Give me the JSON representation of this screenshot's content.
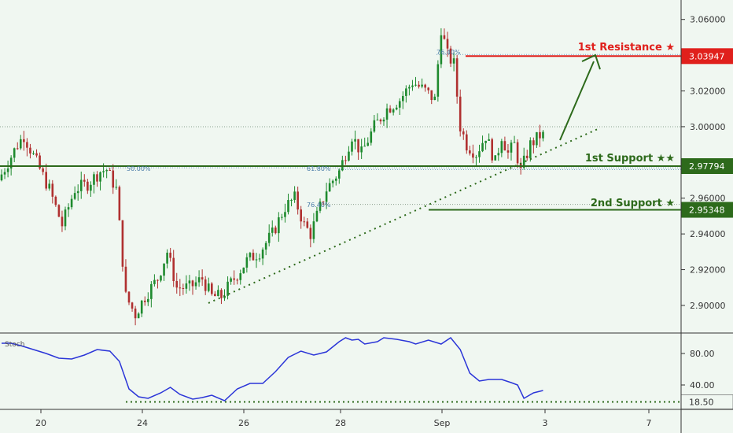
{
  "chart_data": [
    {
      "type": "candlestick",
      "title": "",
      "ylim": [
        2.885,
        3.07
      ],
      "grid": false,
      "yticks": [
        "3.06000",
        "3.04000",
        "3.02000",
        "3.00000",
        "2.98000",
        "2.96000",
        "2.94000",
        "2.92000",
        "2.90000"
      ],
      "xticks": [
        "20",
        "24",
        "26",
        "28",
        "Sep",
        "3",
        "7"
      ],
      "anchors": [
        [
          0,
          2.97
        ],
        [
          6,
          2.99
        ],
        [
          8,
          2.995
        ],
        [
          12,
          2.98
        ],
        [
          16,
          2.965
        ],
        [
          20,
          2.945
        ],
        [
          24,
          2.965
        ],
        [
          28,
          2.968
        ],
        [
          32,
          2.975
        ],
        [
          34,
          2.976
        ],
        [
          37,
          2.965
        ],
        [
          40,
          2.905
        ],
        [
          43,
          2.895
        ],
        [
          46,
          2.905
        ],
        [
          50,
          2.915
        ],
        [
          53,
          2.93
        ],
        [
          56,
          2.91
        ],
        [
          60,
          2.91
        ],
        [
          64,
          2.915
        ],
        [
          67,
          2.905
        ],
        [
          70,
          2.905
        ],
        [
          74,
          2.915
        ],
        [
          78,
          2.925
        ],
        [
          82,
          2.93
        ],
        [
          86,
          2.94
        ],
        [
          90,
          2.955
        ],
        [
          93,
          2.96
        ],
        [
          96,
          2.945
        ],
        [
          98,
          2.94
        ],
        [
          100,
          2.95
        ],
        [
          103,
          2.965
        ],
        [
          107,
          2.975
        ],
        [
          111,
          2.995
        ],
        [
          114,
          2.985
        ],
        [
          118,
          3.0
        ],
        [
          122,
          3.01
        ],
        [
          126,
          3.015
        ],
        [
          130,
          3.025
        ],
        [
          134,
          3.02
        ],
        [
          137,
          3.015
        ],
        [
          139,
          3.055
        ],
        [
          141,
          3.04
        ],
        [
          143,
          3.035
        ],
        [
          145,
          3.0
        ],
        [
          147,
          2.99
        ],
        [
          150,
          2.985
        ],
        [
          153,
          2.995
        ],
        [
          156,
          2.98
        ],
        [
          158,
          2.995
        ],
        [
          160,
          2.985
        ],
        [
          162,
          2.99
        ],
        [
          164,
          2.975
        ],
        [
          167,
          2.99
        ],
        [
          170,
          2.995
        ]
      ],
      "horizontal_levels": [
        {
          "name": "1st Resistance ★",
          "value": 3.03947,
          "label": "3.03947",
          "color": "#e0201c"
        },
        {
          "name": "1st Support ★★",
          "value": 2.97794,
          "label": "2.97794",
          "color": "#2d6a1b"
        },
        {
          "name": "2nd Support ★",
          "value": 2.95348,
          "label": "2.95348",
          "color": "#2d6a1b"
        }
      ],
      "fib_labels": [
        "76.40%",
        "50.00%",
        "61.80%",
        "76.40%"
      ]
    },
    {
      "type": "line",
      "title": "Stoch",
      "ylim": [
        10,
        105
      ],
      "yticks": [
        "80.00",
        "40.00"
      ],
      "level": {
        "value": 18.5,
        "label": "18.50"
      },
      "x": [
        0,
        3,
        6,
        10,
        14,
        18,
        22,
        26,
        30,
        34,
        37,
        40,
        43,
        46,
        50,
        53,
        56,
        60,
        63,
        66,
        70,
        74,
        78,
        82,
        86,
        90,
        94,
        98,
        102,
        106,
        108,
        110,
        112,
        114,
        118,
        120,
        124,
        128,
        130,
        134,
        138,
        141,
        144,
        147,
        150,
        153,
        157,
        160,
        162,
        164,
        167,
        170
      ],
      "values": [
        93,
        93,
        90,
        85,
        80,
        74,
        73,
        78,
        85,
        83,
        70,
        35,
        25,
        23,
        30,
        37,
        28,
        22,
        24,
        27,
        20,
        35,
        42,
        42,
        57,
        75,
        83,
        78,
        82,
        95,
        100,
        97,
        98,
        92,
        95,
        100,
        98,
        95,
        92,
        97,
        92,
        100,
        85,
        55,
        45,
        47,
        47,
        43,
        40,
        23,
        30,
        33
      ]
    }
  ],
  "annotations": {
    "resistance_1": "1st Resistance ★",
    "support_1": "1st Support ★★",
    "support_2": "2nd Support ★",
    "stoch_label": "Stoch"
  }
}
